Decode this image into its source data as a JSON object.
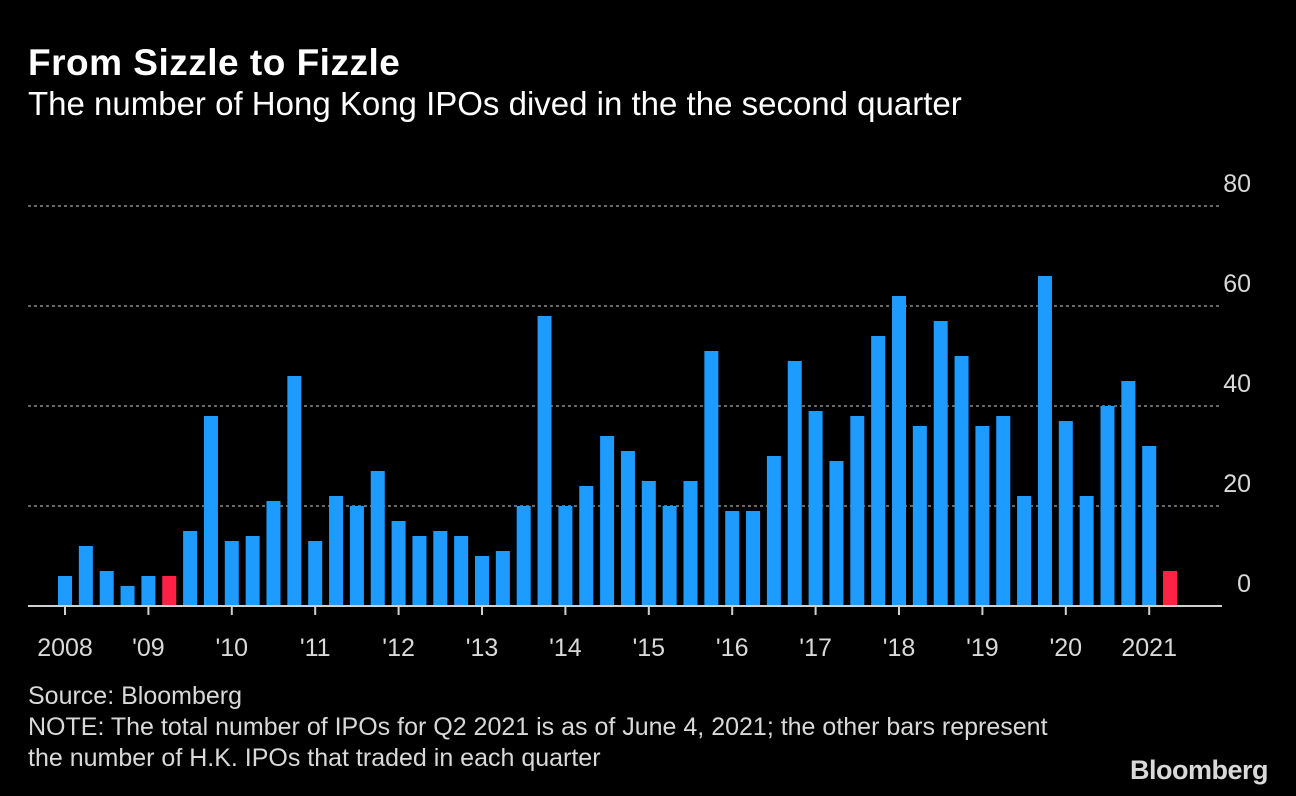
{
  "header": {
    "title": "From Sizzle to Fizzle",
    "subtitle": "The number of Hong Kong IPOs dived in the the second quarter"
  },
  "footer": {
    "source": "Source: Bloomberg",
    "note": "NOTE: The total number of IPOs for Q2 2021 is as of June 4, 2021; the other bars represent the number of H.K. IPOs that traded in each quarter",
    "logo": "Bloomberg"
  },
  "colors": {
    "bar": "#1e9bff",
    "highlight": "#ff2244",
    "background": "#000000",
    "text": "#d9d9d9",
    "grid": "#8a8a8a"
  },
  "chart_data": {
    "type": "bar",
    "title": "From Sizzle to Fizzle",
    "subtitle": "The number of Hong Kong IPOs dived in the the second quarter",
    "ylim": [
      0,
      80
    ],
    "yticks": [
      0,
      20,
      40,
      60,
      80
    ],
    "grid": true,
    "y_axis_side": "right",
    "x_tick_labels": [
      "2008",
      "'09",
      "'10",
      "'11",
      "'12",
      "'13",
      "'14",
      "'15",
      "'16",
      "'17",
      "'18",
      "'19",
      "'20",
      "2021"
    ],
    "categories": [
      "2008 Q1",
      "2008 Q2",
      "2008 Q3",
      "2008 Q4",
      "2009 Q1",
      "2009 Q2",
      "2009 Q3",
      "2009 Q4",
      "2010 Q1",
      "2010 Q2",
      "2010 Q3",
      "2010 Q4",
      "2011 Q1",
      "2011 Q2",
      "2011 Q3",
      "2011 Q4",
      "2012 Q1",
      "2012 Q2",
      "2012 Q3",
      "2012 Q4",
      "2013 Q1",
      "2013 Q2",
      "2013 Q3",
      "2013 Q4",
      "2014 Q1",
      "2014 Q2",
      "2014 Q3",
      "2014 Q4",
      "2015 Q1",
      "2015 Q2",
      "2015 Q3",
      "2015 Q4",
      "2016 Q1",
      "2016 Q2",
      "2016 Q3",
      "2016 Q4",
      "2017 Q1",
      "2017 Q2",
      "2017 Q3",
      "2017 Q4",
      "2018 Q1",
      "2018 Q2",
      "2018 Q3",
      "2018 Q4",
      "2019 Q1",
      "2019 Q2",
      "2019 Q3",
      "2019 Q4",
      "2020 Q1",
      "2020 Q2",
      "2020 Q3",
      "2020 Q4",
      "2021 Q1",
      "2021 Q2"
    ],
    "values": [
      6,
      12,
      7,
      4,
      6,
      6,
      15,
      38,
      13,
      14,
      21,
      46,
      13,
      22,
      20,
      27,
      17,
      14,
      15,
      14,
      10,
      11,
      20,
      58,
      20,
      24,
      34,
      31,
      25,
      20,
      25,
      51,
      19,
      19,
      30,
      49,
      39,
      29,
      38,
      54,
      62,
      36,
      57,
      50,
      36,
      38,
      22,
      66,
      37,
      22,
      40,
      45,
      32,
      7
    ],
    "highlighted": [
      5,
      53
    ]
  }
}
